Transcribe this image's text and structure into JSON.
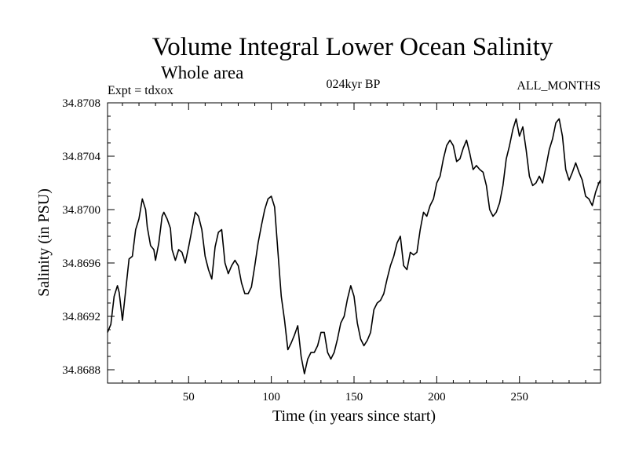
{
  "chart_data": {
    "type": "line",
    "title": "Volume Integral Lower Ocean Salinity",
    "subtitle": "Whole area",
    "annotations": {
      "left": "Expt = tdxox",
      "center": "024kyr BP",
      "right": "ALL_MONTHS"
    },
    "xlabel": "Time (in years since start)",
    "ylabel": "Salinity (in PSU)",
    "xlim": [
      1,
      299
    ],
    "ylim": [
      34.8687,
      34.8708
    ],
    "xticks": [
      50,
      100,
      150,
      200,
      250
    ],
    "yticks": [
      34.8688,
      34.8692,
      34.8696,
      34.87,
      34.8704,
      34.8708
    ],
    "xtick_labels": [
      "50",
      "100",
      "150",
      "200",
      "250"
    ],
    "ytick_labels": [
      "34.8688",
      "34.8692",
      "34.8696",
      "34.8700",
      "34.8704",
      "34.8708"
    ],
    "grid": false,
    "series": [
      {
        "color": "#000000",
        "points": [
          [
            1,
            34.86908
          ],
          [
            3,
            34.86914
          ],
          [
            5,
            34.86935
          ],
          [
            7,
            34.86943
          ],
          [
            8,
            34.86938
          ],
          [
            10,
            34.86917
          ],
          [
            12,
            34.8694
          ],
          [
            14,
            34.86963
          ],
          [
            16,
            34.86965
          ],
          [
            18,
            34.86985
          ],
          [
            20,
            34.86993
          ],
          [
            22,
            34.87008
          ],
          [
            24,
            34.87
          ],
          [
            25,
            34.86987
          ],
          [
            27,
            34.86973
          ],
          [
            29,
            34.8697
          ],
          [
            30,
            34.86962
          ],
          [
            32,
            34.86975
          ],
          [
            34,
            34.86995
          ],
          [
            35,
            34.86998
          ],
          [
            37,
            34.86993
          ],
          [
            39,
            34.86986
          ],
          [
            40,
            34.8697
          ],
          [
            42,
            34.86962
          ],
          [
            44,
            34.8697
          ],
          [
            46,
            34.86968
          ],
          [
            48,
            34.8696
          ],
          [
            50,
            34.86972
          ],
          [
            52,
            34.86985
          ],
          [
            54,
            34.86998
          ],
          [
            56,
            34.86995
          ],
          [
            58,
            34.86985
          ],
          [
            60,
            34.86965
          ],
          [
            62,
            34.86955
          ],
          [
            64,
            34.86948
          ],
          [
            66,
            34.86972
          ],
          [
            68,
            34.86983
          ],
          [
            70,
            34.86985
          ],
          [
            72,
            34.8696
          ],
          [
            74,
            34.86952
          ],
          [
            76,
            34.86958
          ],
          [
            78,
            34.86962
          ],
          [
            80,
            34.86958
          ],
          [
            82,
            34.86945
          ],
          [
            84,
            34.86937
          ],
          [
            86,
            34.86937
          ],
          [
            88,
            34.86942
          ],
          [
            90,
            34.86958
          ],
          [
            92,
            34.86975
          ],
          [
            94,
            34.86988
          ],
          [
            96,
            34.87
          ],
          [
            98,
            34.87008
          ],
          [
            100,
            34.8701
          ],
          [
            102,
            34.87002
          ],
          [
            104,
            34.86968
          ],
          [
            106,
            34.86935
          ],
          [
            108,
            34.86917
          ],
          [
            110,
            34.86895
          ],
          [
            112,
            34.869
          ],
          [
            114,
            34.86906
          ],
          [
            116,
            34.86913
          ],
          [
            118,
            34.8689
          ],
          [
            120,
            34.86877
          ],
          [
            122,
            34.86888
          ],
          [
            124,
            34.86893
          ],
          [
            126,
            34.86893
          ],
          [
            128,
            34.86898
          ],
          [
            130,
            34.86908
          ],
          [
            132,
            34.86908
          ],
          [
            134,
            34.86893
          ],
          [
            136,
            34.86888
          ],
          [
            138,
            34.86893
          ],
          [
            140,
            34.86903
          ],
          [
            142,
            34.86915
          ],
          [
            144,
            34.8692
          ],
          [
            146,
            34.86933
          ],
          [
            148,
            34.86943
          ],
          [
            150,
            34.86935
          ],
          [
            152,
            34.86915
          ],
          [
            154,
            34.86903
          ],
          [
            156,
            34.86898
          ],
          [
            158,
            34.86902
          ],
          [
            160,
            34.86908
          ],
          [
            162,
            34.86925
          ],
          [
            164,
            34.8693
          ],
          [
            166,
            34.86932
          ],
          [
            168,
            34.86937
          ],
          [
            170,
            34.86948
          ],
          [
            172,
            34.86958
          ],
          [
            174,
            34.86965
          ],
          [
            176,
            34.86975
          ],
          [
            178,
            34.8698
          ],
          [
            180,
            34.86958
          ],
          [
            182,
            34.86955
          ],
          [
            184,
            34.86968
          ],
          [
            186,
            34.86966
          ],
          [
            188,
            34.86968
          ],
          [
            190,
            34.86985
          ],
          [
            192,
            34.86998
          ],
          [
            194,
            34.86995
          ],
          [
            196,
            34.87003
          ],
          [
            198,
            34.87008
          ],
          [
            200,
            34.8702
          ],
          [
            202,
            34.87025
          ],
          [
            204,
            34.87038
          ],
          [
            206,
            34.87048
          ],
          [
            208,
            34.87052
          ],
          [
            210,
            34.87048
          ],
          [
            212,
            34.87036
          ],
          [
            214,
            34.87038
          ],
          [
            216,
            34.87046
          ],
          [
            218,
            34.87052
          ],
          [
            220,
            34.87042
          ],
          [
            222,
            34.8703
          ],
          [
            224,
            34.87033
          ],
          [
            226,
            34.8703
          ],
          [
            228,
            34.87028
          ],
          [
            230,
            34.87018
          ],
          [
            232,
            34.87
          ],
          [
            234,
            34.86995
          ],
          [
            236,
            34.86998
          ],
          [
            238,
            34.87005
          ],
          [
            240,
            34.87018
          ],
          [
            242,
            34.87038
          ],
          [
            244,
            34.87048
          ],
          [
            246,
            34.8706
          ],
          [
            248,
            34.87068
          ],
          [
            250,
            34.87055
          ],
          [
            252,
            34.87062
          ],
          [
            254,
            34.87045
          ],
          [
            256,
            34.87025
          ],
          [
            258,
            34.87018
          ],
          [
            260,
            34.8702
          ],
          [
            262,
            34.87025
          ],
          [
            264,
            34.8702
          ],
          [
            266,
            34.87032
          ],
          [
            268,
            34.87045
          ],
          [
            270,
            34.87053
          ],
          [
            272,
            34.87065
          ],
          [
            274,
            34.87068
          ],
          [
            276,
            34.87055
          ],
          [
            278,
            34.8703
          ],
          [
            280,
            34.87022
          ],
          [
            282,
            34.87028
          ],
          [
            284,
            34.87035
          ],
          [
            286,
            34.87028
          ],
          [
            288,
            34.87022
          ],
          [
            290,
            34.8701
          ],
          [
            292,
            34.87008
          ],
          [
            294,
            34.87003
          ],
          [
            296,
            34.87013
          ],
          [
            298,
            34.8702
          ],
          [
            299,
            34.87022
          ]
        ]
      }
    ]
  }
}
